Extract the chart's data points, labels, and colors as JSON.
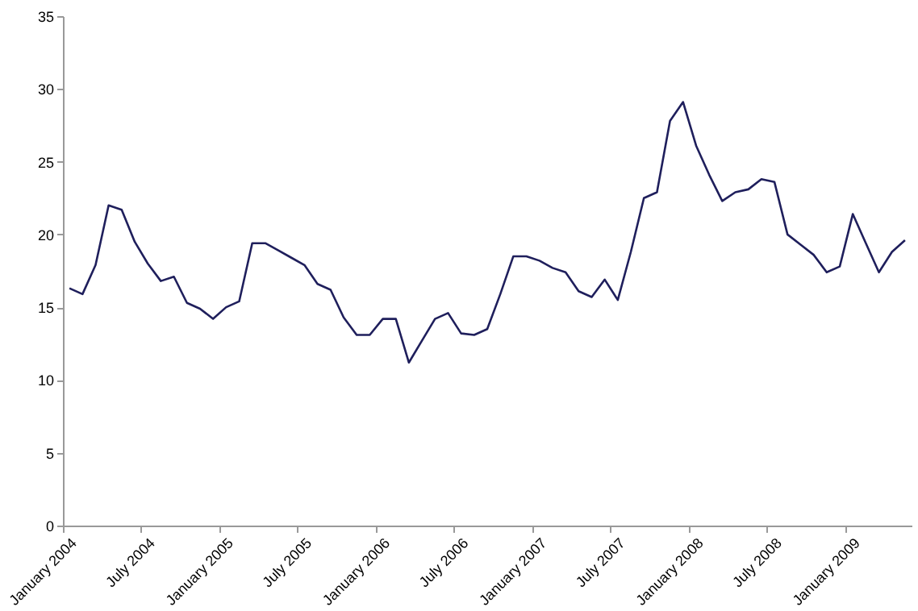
{
  "chart_data": {
    "type": "line",
    "categories": [
      "January 2004",
      null,
      null,
      null,
      null,
      null,
      "July 2004",
      null,
      null,
      null,
      null,
      null,
      "January 2005",
      null,
      null,
      null,
      null,
      null,
      "July 2005",
      null,
      null,
      null,
      null,
      null,
      "January 2006",
      null,
      null,
      null,
      null,
      null,
      "July 2006",
      null,
      null,
      null,
      null,
      null,
      "January 2007",
      null,
      null,
      null,
      null,
      null,
      "July 2007",
      null,
      null,
      null,
      null,
      null,
      "January 2008",
      null,
      null,
      null,
      null,
      null,
      "July 2008",
      null,
      null,
      null,
      null,
      null,
      "January 2009",
      null,
      null,
      null,
      null
    ],
    "series": [
      {
        "color": "#1f1f5c",
        "values": [
          16.3,
          15.9,
          17.9,
          22.0,
          21.7,
          19.5,
          18.0,
          16.8,
          17.1,
          15.3,
          14.9,
          14.2,
          15.0,
          15.4,
          19.4,
          19.4,
          18.9,
          18.4,
          17.9,
          16.6,
          16.2,
          14.3,
          13.1,
          13.1,
          14.2,
          14.2,
          11.2,
          12.7,
          14.2,
          14.6,
          13.2,
          13.1,
          13.5,
          15.9,
          18.5,
          18.5,
          18.2,
          17.7,
          17.4,
          16.1,
          15.7,
          16.9,
          15.5,
          18.8,
          22.5,
          22.9,
          27.8,
          29.1,
          26.1,
          24.1,
          22.3,
          22.9,
          23.1,
          23.8,
          23.6,
          20.0,
          19.3,
          18.6,
          17.4,
          17.8,
          21.4,
          19.4,
          17.4,
          18.8,
          19.6
        ]
      }
    ],
    "ylim": [
      0,
      35
    ],
    "yticks": [
      0,
      5,
      10,
      15,
      20,
      25,
      30,
      35
    ],
    "grid": false,
    "legend": false
  }
}
